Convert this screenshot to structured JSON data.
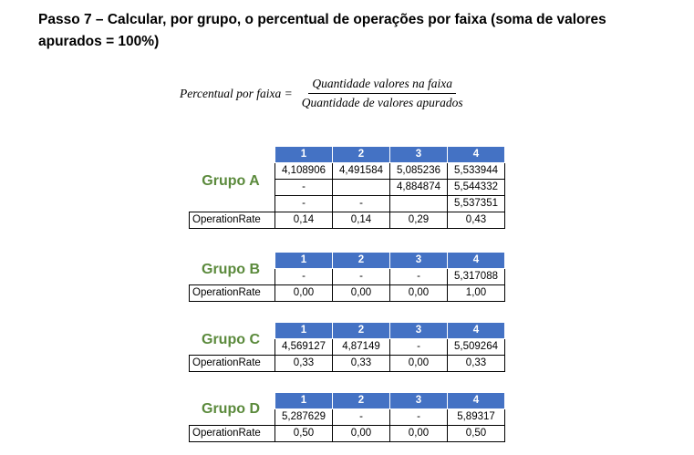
{
  "title": "Passo 7 – Calcular, por grupo, o percentual de operações por faixa (soma de valores apurados = 100%)",
  "formula": {
    "lhs": "Percentual por faixa =",
    "numerator": "Quantidade valores na faixa",
    "denominator": "Quantidade de valores apurados"
  },
  "colors": {
    "header": "#4472c4",
    "group_label": "#5b8a3c"
  },
  "groups": [
    {
      "label": "Grupo A",
      "headers": [
        "1",
        "2",
        "3",
        "4"
      ],
      "rows": [
        [
          "4,108906",
          "4,491584",
          "5,085236",
          "5,533944"
        ],
        [
          "-",
          "",
          "4,884874",
          "5,544332"
        ],
        [
          "-",
          "-",
          "",
          "5,537351"
        ]
      ],
      "rate_label": "OperationRate",
      "rates": [
        "0,14",
        "0,14",
        "0,29",
        "0,43"
      ]
    },
    {
      "label": "Grupo B",
      "headers": [
        "1",
        "2",
        "3",
        "4"
      ],
      "rows": [
        [
          "-",
          "-",
          "-",
          "5,317088"
        ]
      ],
      "rate_label": "OperationRate",
      "rates": [
        "0,00",
        "0,00",
        "0,00",
        "1,00"
      ]
    },
    {
      "label": "Grupo C",
      "headers": [
        "1",
        "2",
        "3",
        "4"
      ],
      "rows": [
        [
          "4,569127",
          "4,87149",
          "-",
          "5,509264"
        ]
      ],
      "rate_label": "OperationRate",
      "rates": [
        "0,33",
        "0,33",
        "0,00",
        "0,33"
      ]
    },
    {
      "label": "Grupo D",
      "headers": [
        "1",
        "2",
        "3",
        "4"
      ],
      "rows": [
        [
          "5,287629",
          "-",
          "-",
          "5,89317"
        ]
      ],
      "rate_label": "OperationRate",
      "rates": [
        "0,50",
        "0,00",
        "0,00",
        "0,50"
      ]
    }
  ]
}
